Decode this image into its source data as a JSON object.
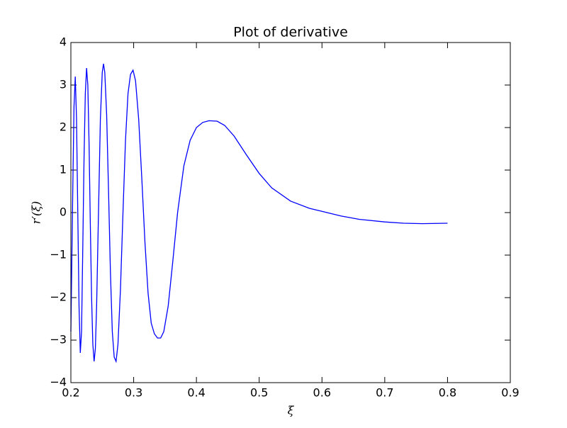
{
  "chart_data": {
    "type": "line",
    "title": "Plot of derivative",
    "xlabel": "ξ",
    "ylabel": "r′(ξ)",
    "x": [
      0.2,
      0.203,
      0.205,
      0.207,
      0.209,
      0.211,
      0.213,
      0.215,
      0.217,
      0.219,
      0.221,
      0.223,
      0.225,
      0.227,
      0.229,
      0.231,
      0.233,
      0.235,
      0.237,
      0.239,
      0.241,
      0.244,
      0.247,
      0.25,
      0.252,
      0.254,
      0.257,
      0.26,
      0.263,
      0.266,
      0.269,
      0.272,
      0.275,
      0.279,
      0.283,
      0.287,
      0.291,
      0.295,
      0.299,
      0.303,
      0.308,
      0.313,
      0.318,
      0.323,
      0.328,
      0.333,
      0.338,
      0.343,
      0.348,
      0.355,
      0.362,
      0.37,
      0.38,
      0.39,
      0.4,
      0.41,
      0.42,
      0.433,
      0.445,
      0.46,
      0.48,
      0.5,
      0.52,
      0.55,
      0.58,
      0.6,
      0.63,
      0.66,
      0.7,
      0.73,
      0.76,
      0.8
    ],
    "series": [
      {
        "color": "#0000ff",
        "values": [
          -2.8,
          0.5,
          2.5,
          3.2,
          2.2,
          0,
          -2.2,
          -3.3,
          -2.8,
          -0.8,
          1.3,
          2.8,
          3.4,
          3.0,
          1.6,
          -0.3,
          -2.0,
          -3.1,
          -3.5,
          -3.2,
          -2.2,
          0,
          2.2,
          3.3,
          3.5,
          3.3,
          2.3,
          0.5,
          -1.4,
          -2.8,
          -3.4,
          -3.5,
          -3.1,
          -1.8,
          0,
          1.7,
          2.8,
          3.25,
          3.35,
          3.1,
          2.2,
          0.8,
          -0.7,
          -1.9,
          -2.6,
          -2.85,
          -2.95,
          -2.95,
          -2.8,
          -2.2,
          -1.2,
          0,
          1.1,
          1.7,
          2.0,
          2.12,
          2.16,
          2.15,
          2.05,
          1.8,
          1.35,
          0.92,
          0.58,
          0.27,
          0.1,
          0.03,
          -0.08,
          -0.16,
          -0.22,
          -0.25,
          -0.26,
          -0.25
        ]
      }
    ],
    "xlim": [
      0.2,
      0.9
    ],
    "xticks": [
      0.2,
      0.3,
      0.4,
      0.5,
      0.6,
      0.7,
      0.8,
      0.9
    ],
    "ylim": [
      -4,
      4
    ],
    "yticks": [
      {
        "value": -4,
        "label": "−4"
      },
      {
        "value": -3,
        "label": "−3"
      },
      {
        "value": -2,
        "label": "−2"
      },
      {
        "value": -1,
        "label": "−1"
      },
      0,
      1,
      2,
      3,
      4
    ]
  }
}
